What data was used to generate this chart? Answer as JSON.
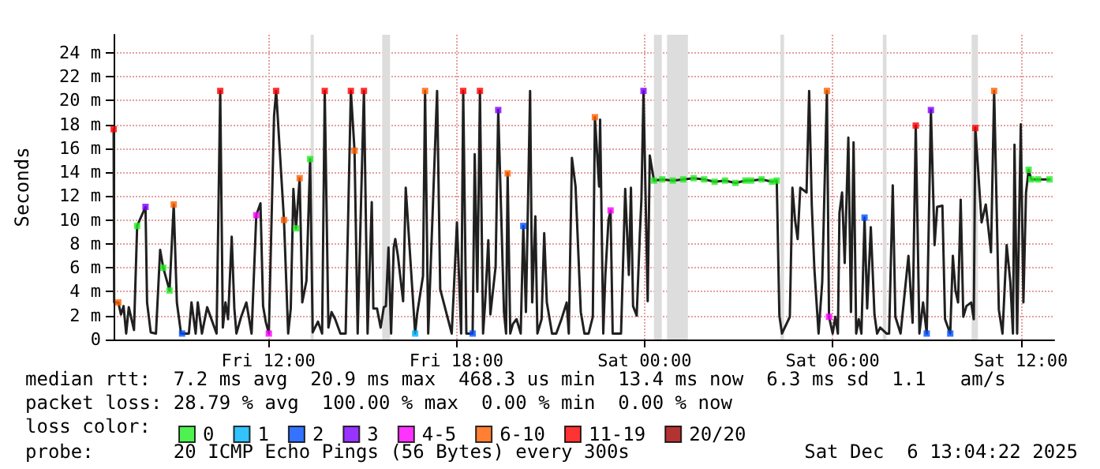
{
  "chart_data": {
    "type": "line",
    "ylabel": "Seconds",
    "legend_title": "loss color:",
    "legend": "bottom",
    "grid": true,
    "marker": "none",
    "xlim": [
      "2025-12-05T07:04",
      "2025-12-06T13:04"
    ],
    "xticks": [
      {
        "value": "2025-12-05T12:00",
        "label": "Fri 12:00"
      },
      {
        "value": "2025-12-05T18:00",
        "label": "Fri 18:00"
      },
      {
        "value": "2025-12-06T00:00",
        "label": "Sat 00:00"
      },
      {
        "value": "2025-12-06T06:00",
        "label": "Sat 06:00"
      },
      {
        "value": "2025-12-06T12:00",
        "label": "Sat 12:00"
      }
    ],
    "ylim": [
      0,
      25.5
    ],
    "yticks": [
      0,
      {
        "value": 2,
        "label": "2 m"
      },
      {
        "value": 4,
        "label": "4 m"
      },
      {
        "value": 6,
        "label": "6 m"
      },
      {
        "value": 8,
        "label": "8 m"
      },
      {
        "value": 10,
        "label": "10 m"
      },
      {
        "value": 12,
        "label": "12 m"
      },
      {
        "value": 14,
        "label": "14 m"
      },
      {
        "value": 16,
        "label": "16 m"
      },
      {
        "value": 18,
        "label": "18 m"
      },
      {
        "value": 20,
        "label": "20 m"
      },
      {
        "value": 22,
        "label": "22 m"
      },
      {
        "value": 24,
        "label": "24 m"
      }
    ],
    "bands": [
      {
        "axis": "x",
        "from": "2025-12-05T13:21",
        "to": "2025-12-05T13:27",
        "color": "#dddddd"
      },
      {
        "axis": "x",
        "from": "2025-12-05T15:38",
        "to": "2025-12-05T15:53",
        "color": "#dddddd"
      },
      {
        "axis": "x",
        "from": "2025-12-06T00:18",
        "to": "2025-12-06T00:33",
        "color": "#dddddd"
      },
      {
        "axis": "x",
        "from": "2025-12-06T00:43",
        "to": "2025-12-06T01:23",
        "color": "#dddddd"
      },
      {
        "axis": "x",
        "from": "2025-12-06T04:20",
        "to": "2025-12-06T04:27",
        "color": "#dddddd"
      },
      {
        "axis": "x",
        "from": "2025-12-06T07:36",
        "to": "2025-12-06T07:43",
        "color": "#dddddd"
      },
      {
        "axis": "x",
        "from": "2025-12-06T10:26",
        "to": "2025-12-06T10:38",
        "color": "#dddddd"
      }
    ],
    "series": [
      {
        "color": "#202020",
        "x": [
          "2025-12-05T07:04",
          "2025-12-05T07:05",
          "2025-12-05T07:13",
          "2025-12-05T07:18",
          "2025-12-05T07:23",
          "2025-12-05T07:28",
          "2025-12-05T07:33",
          "2025-12-05T07:43",
          "2025-12-05T07:49",
          "2025-12-05T08:05",
          "2025-12-05T08:08",
          "2025-12-05T08:15",
          "2025-12-05T08:25",
          "2025-12-05T08:33",
          "2025-12-05T08:39",
          "2025-12-05T08:51",
          "2025-12-05T08:59",
          "2025-12-05T09:05",
          "2025-12-05T09:13",
          "2025-12-05T09:28",
          "2025-12-05T09:33",
          "2025-12-05T09:41",
          "2025-12-05T09:45",
          "2025-12-05T09:53",
          "2025-12-05T10:03",
          "2025-12-05T10:21",
          "2025-12-05T10:28",
          "2025-12-05T10:33",
          "2025-12-05T10:38",
          "2025-12-05T10:43",
          "2025-12-05T10:50",
          "2025-12-05T10:55",
          "2025-12-05T10:59",
          "2025-12-05T11:08",
          "2025-12-05T11:18",
          "2025-12-05T11:28",
          "2025-12-05T11:37",
          "2025-12-05T11:45",
          "2025-12-05T11:50",
          "2025-12-05T11:55",
          "2025-12-05T12:01",
          "2025-12-05T12:11",
          "2025-12-05T12:15",
          "2025-12-05T12:30",
          "2025-12-05T12:38",
          "2025-12-05T12:43",
          "2025-12-05T12:48",
          "2025-12-05T12:53",
          "2025-12-05T13:00",
          "2025-12-05T13:05",
          "2025-12-05T13:13",
          "2025-12-05T13:20",
          "2025-12-05T13:25",
          "2025-12-05T13:35",
          "2025-12-05T13:43",
          "2025-12-05T13:48",
          "2025-12-05T13:55",
          "2025-12-05T14:01",
          "2025-12-05T14:08",
          "2025-12-05T14:18",
          "2025-12-05T14:28",
          "2025-12-05T14:38",
          "2025-12-05T14:45",
          "2025-12-05T14:51",
          "2025-12-05T15:03",
          "2025-12-05T15:10",
          "2025-12-05T15:18",
          "2025-12-05T15:21",
          "2025-12-05T15:28",
          "2025-12-05T15:35",
          "2025-12-05T15:41",
          "2025-12-05T15:45",
          "2025-12-05T15:50",
          "2025-12-05T15:55",
          "2025-12-05T16:00",
          "2025-12-05T16:03",
          "2025-12-05T16:08",
          "2025-12-05T16:18",
          "2025-12-05T16:23",
          "2025-12-05T16:41",
          "2025-12-05T16:45",
          "2025-12-05T16:56",
          "2025-12-05T17:00",
          "2025-12-05T17:06",
          "2025-12-05T17:23",
          "2025-12-05T17:29",
          "2025-12-05T17:51",
          "2025-12-05T17:55",
          "2025-12-05T18:01",
          "2025-12-05T18:09",
          "2025-12-05T18:13",
          "2025-12-05T18:19",
          "2025-12-05T18:31",
          "2025-12-05T18:35",
          "2025-12-05T18:40",
          "2025-12-05T18:45",
          "2025-12-05T18:51",
          "2025-12-05T18:55",
          "2025-12-05T19:01",
          "2025-12-05T19:05",
          "2025-12-05T19:15",
          "2025-12-05T19:20",
          "2025-12-05T19:31",
          "2025-12-05T19:35",
          "2025-12-05T19:38",
          "2025-12-05T19:43",
          "2025-12-05T19:48",
          "2025-12-05T19:55",
          "2025-12-05T20:03",
          "2025-12-05T20:08",
          "2025-12-05T20:13",
          "2025-12-05T20:21",
          "2025-12-05T20:25",
          "2025-12-05T20:31",
          "2025-12-05T20:35",
          "2025-12-05T20:43",
          "2025-12-05T20:48",
          "2025-12-05T20:53",
          "2025-12-05T21:03",
          "2025-12-05T21:11",
          "2025-12-05T21:21",
          "2025-12-05T21:31",
          "2025-12-05T21:35",
          "2025-12-05T21:41",
          "2025-12-05T21:48",
          "2025-12-05T21:58",
          "2025-12-05T22:05",
          "2025-12-05T22:13",
          "2025-12-05T22:21",
          "2025-12-05T22:25",
          "2025-12-05T22:33",
          "2025-12-05T22:35",
          "2025-12-05T22:41",
          "2025-12-05T22:45",
          "2025-12-05T22:51",
          "2025-12-05T22:55",
          "2025-12-05T22:59",
          "2025-12-05T23:15",
          "2025-12-05T23:23",
          "2025-12-05T23:30",
          "2025-12-05T23:34",
          "2025-12-05T23:38",
          "2025-12-05T23:45",
          "2025-12-05T23:51",
          "2025-12-05T23:54",
          "2025-12-05T23:58",
          "2025-12-06T00:06",
          "2025-12-06T00:10",
          "2025-12-06T00:18",
          "2025-12-06T00:34",
          "2025-12-06T00:54",
          "2025-12-06T01:14",
          "2025-12-06T01:34",
          "2025-12-06T01:54",
          "2025-12-06T02:14",
          "2025-12-06T02:34",
          "2025-12-06T02:54",
          "2025-12-06T03:13",
          "2025-12-06T03:24",
          "2025-12-06T03:44",
          "2025-12-06T04:04",
          "2025-12-06T04:13",
          "2025-12-06T04:18",
          "2025-12-06T04:23",
          "2025-12-06T04:38",
          "2025-12-06T04:43",
          "2025-12-06T04:48",
          "2025-12-06T04:53",
          "2025-12-06T04:58",
          "2025-12-06T05:10",
          "2025-12-06T05:15",
          "2025-12-06T05:20",
          "2025-12-06T05:25",
          "2025-12-06T05:33",
          "2025-12-06T05:40",
          "2025-12-06T05:49",
          "2025-12-06T05:53",
          "2025-12-06T06:00",
          "2025-12-06T06:05",
          "2025-12-06T06:10",
          "2025-12-06T06:13",
          "2025-12-06T06:18",
          "2025-12-06T06:23",
          "2025-12-06T06:30",
          "2025-12-06T06:35",
          "2025-12-06T06:40",
          "2025-12-06T06:45",
          "2025-12-06T06:50",
          "2025-12-06T06:55",
          "2025-12-06T07:01",
          "2025-12-06T07:06",
          "2025-12-06T07:13",
          "2025-12-06T07:20",
          "2025-12-06T07:25",
          "2025-12-06T07:31",
          "2025-12-06T07:43",
          "2025-12-06T07:48",
          "2025-12-06T07:55",
          "2025-12-06T08:00",
          "2025-12-06T08:10",
          "2025-12-06T08:25",
          "2025-12-06T08:33",
          "2025-12-06T08:39",
          "2025-12-06T08:46",
          "2025-12-06T08:53",
          "2025-12-06T09:00",
          "2025-12-06T09:08",
          "2025-12-06T09:15",
          "2025-12-06T09:20",
          "2025-12-06T09:30",
          "2025-12-06T09:35",
          "2025-12-06T09:45",
          "2025-12-06T09:50",
          "2025-12-06T09:55",
          "2025-12-06T10:00",
          "2025-12-06T10:05",
          "2025-12-06T10:10",
          "2025-12-06T10:16",
          "2025-12-06T10:25",
          "2025-12-06T10:30",
          "2025-12-06T10:33",
          "2025-12-06T10:45",
          "2025-12-06T10:53",
          "2025-12-06T11:03",
          "2025-12-06T11:09",
          "2025-12-06T11:18",
          "2025-12-06T11:25",
          "2025-12-06T11:33",
          "2025-12-06T11:40",
          "2025-12-06T11:45",
          "2025-12-06T11:48",
          "2025-12-06T11:53",
          "2025-12-06T12:00",
          "2025-12-06T12:05",
          "2025-12-06T12:10",
          "2025-12-06T12:15",
          "2025-12-06T12:20",
          "2025-12-06T12:33",
          "2025-12-06T12:55"
        ],
        "values": [
          17.6,
          3.1,
          3.1,
          2.1,
          2.8,
          0.5,
          2.7,
          0.8,
          9.5,
          11.1,
          3.1,
          0.6,
          0.5,
          7.5,
          6.0,
          4.1,
          11.3,
          3.1,
          0.5,
          0.5,
          3.1,
          0.5,
          3.1,
          0.5,
          2.7,
          0.5,
          20.8,
          1.0,
          3.1,
          1.7,
          8.6,
          2.6,
          0.5,
          1.9,
          3.1,
          0.5,
          10.4,
          11.4,
          2.8,
          1.5,
          0.5,
          18.7,
          20.8,
          10.0,
          0.5,
          2.6,
          12.6,
          9.3,
          13.5,
          3.1,
          4.9,
          15.1,
          0.6,
          1.5,
          0.5,
          20.8,
          1.0,
          2.3,
          1.7,
          0.5,
          0.5,
          20.8,
          15.8,
          0.5,
          20.8,
          0.5,
          11.5,
          2.6,
          2.6,
          1.0,
          2.7,
          2.8,
          7.7,
          0.5,
          7.7,
          8.4,
          7.0,
          3.2,
          12.7,
          0.5,
          2.2,
          5.3,
          20.8,
          0.5,
          20.8,
          4.2,
          0.5,
          4.1,
          9.8,
          0.5,
          20.8,
          0.5,
          0.5,
          15.5,
          4.0,
          20.8,
          0.5,
          3.1,
          8.3,
          2.1,
          6.1,
          19.2,
          2.3,
          0.5,
          13.9,
          0.5,
          1.3,
          1.7,
          0.5,
          9.5,
          2.3,
          20.8,
          3.1,
          10.3,
          0.5,
          1.7,
          8.9,
          3.1,
          0.5,
          0.5,
          1.7,
          3.1,
          0.5,
          15.2,
          12.8,
          2.3,
          0.5,
          0.5,
          1.9,
          18.6,
          12.8,
          18.4,
          0.5,
          5.4,
          10.0,
          10.8,
          0.5,
          0.5,
          12.6,
          5.4,
          12.7,
          2.8,
          2.0,
          8.8,
          11.7,
          20.8,
          3.2,
          15.4,
          13.3,
          13.4,
          13.3,
          13.4,
          13.5,
          13.4,
          13.2,
          13.3,
          13.1,
          13.3,
          13.3,
          13.4,
          13.2,
          13.3,
          2.0,
          0.5,
          1.9,
          12.7,
          10.0,
          8.4,
          12.7,
          12.3,
          20.8,
          11.3,
          5.9,
          0.5,
          4.8,
          20.8,
          1.9,
          0.5,
          1.9,
          0.5,
          10.6,
          12.3,
          6.4,
          16.9,
          2.3,
          16.5,
          0.5,
          1.7,
          0.5,
          10.2,
          2.6,
          9.4,
          2.1,
          0.5,
          1.0,
          0.5,
          0.5,
          12.9,
          1.9,
          0.5,
          7.0,
          1.4,
          17.9,
          0.5,
          3.1,
          0.5,
          19.2,
          7.9,
          11.1,
          11.2,
          1.7,
          0.5,
          7.0,
          4.1,
          3.1,
          11.7,
          1.9,
          2.8,
          3.1,
          1.7,
          17.7,
          9.8,
          11.3,
          7.3,
          20.8,
          2.5,
          0.5,
          7.9,
          4.8,
          0.5,
          16.3,
          0.5,
          18.0,
          3.1,
          12.3,
          14.2,
          13.4,
          13.4,
          13.4
        ]
      },
      {
        "type": "scatter",
        "name": "0",
        "color": "#22ee22",
        "marker": "square",
        "x": [
          "2025-12-05T07:49",
          "2025-12-05T08:39",
          "2025-12-05T08:51",
          "2025-12-05T12:53",
          "2025-12-05T13:20",
          "2025-12-06T00:18",
          "2025-12-06T00:34",
          "2025-12-06T00:54",
          "2025-12-06T01:14",
          "2025-12-06T01:34",
          "2025-12-06T01:54",
          "2025-12-06T02:14",
          "2025-12-06T02:34",
          "2025-12-06T02:54",
          "2025-12-06T03:13",
          "2025-12-06T03:24",
          "2025-12-06T03:44",
          "2025-12-06T04:04",
          "2025-12-06T04:13",
          "2025-12-06T12:15",
          "2025-12-06T12:20",
          "2025-12-06T12:33",
          "2025-12-06T12:55"
        ],
        "values": [
          9.5,
          6.0,
          4.1,
          9.3,
          15.1,
          13.3,
          13.4,
          13.3,
          13.4,
          13.5,
          13.4,
          13.2,
          13.3,
          13.1,
          13.3,
          13.3,
          13.4,
          13.2,
          13.3,
          14.2,
          13.4,
          13.4,
          13.4
        ]
      },
      {
        "type": "scatter",
        "name": "1",
        "color": "#00b4ff",
        "marker": "square",
        "x": [
          "2025-12-05T16:41"
        ],
        "values": [
          0.5
        ]
      },
      {
        "type": "scatter",
        "name": "2",
        "color": "#0050ff",
        "marker": "square",
        "x": [
          "2025-12-05T09:15",
          "2025-12-05T18:31",
          "2025-12-05T20:08",
          "2025-12-06T07:01",
          "2025-12-06T09:00",
          "2025-12-06T09:45"
        ],
        "values": [
          0.5,
          0.5,
          9.5,
          10.2,
          0.5,
          0.5
        ]
      },
      {
        "type": "scatter",
        "name": "3",
        "color": "#8000ff",
        "marker": "square",
        "x": [
          "2025-12-05T08:05",
          "2025-12-05T19:20",
          "2025-12-05T23:58",
          "2025-12-06T09:08"
        ],
        "values": [
          11.1,
          19.2,
          20.8,
          19.2
        ]
      },
      {
        "type": "scatter",
        "name": "4-5",
        "color": "#ff00ff",
        "marker": "square",
        "x": [
          "2025-12-05T11:37",
          "2025-12-05T12:01",
          "2025-12-05T22:55",
          "2025-12-06T05:53"
        ],
        "values": [
          10.4,
          0.5,
          10.8,
          1.9
        ]
      },
      {
        "type": "scatter",
        "name": "6-10",
        "color": "#ff6000",
        "marker": "square",
        "x": [
          "2025-12-05T07:13",
          "2025-12-05T08:59",
          "2025-12-05T12:30",
          "2025-12-05T13:00",
          "2025-12-05T14:45",
          "2025-12-05T17:00",
          "2025-12-05T19:38",
          "2025-12-05T22:25",
          "2025-12-06T05:49",
          "2025-12-06T11:09"
        ],
        "values": [
          3.1,
          11.3,
          10.0,
          13.5,
          15.8,
          20.8,
          13.9,
          18.6,
          20.8,
          20.8
        ]
      },
      {
        "type": "scatter",
        "name": "11-19",
        "color": "#ff0000",
        "marker": "square",
        "x": [
          "2025-12-05T07:04",
          "2025-12-05T10:28",
          "2025-12-05T12:15",
          "2025-12-05T13:48",
          "2025-12-05T14:38",
          "2025-12-05T15:03",
          "2025-12-05T18:13",
          "2025-12-05T18:45",
          "2025-12-06T08:39",
          "2025-12-06T10:33"
        ],
        "values": [
          17.6,
          20.8,
          20.8,
          20.8,
          20.8,
          20.8,
          20.8,
          20.8,
          17.9,
          17.7
        ]
      },
      {
        "type": "scatter",
        "name": "20/20",
        "color": "#a00000",
        "marker": "square"
      }
    ],
    "annotations": [
      "median rtt:  7.2 ms avg  20.9 ms max  468.3 us min  13.4 ms now  6.3 ms sd  1.1   am/s",
      "packet loss: 28.79 % avg  100.00 % max  0.00 % min  0.00 % now",
      "probe:       20 ICMP Echo Pings (56 Bytes) every 300s",
      "Sat Dec  6 13:04:22 2025"
    ]
  }
}
